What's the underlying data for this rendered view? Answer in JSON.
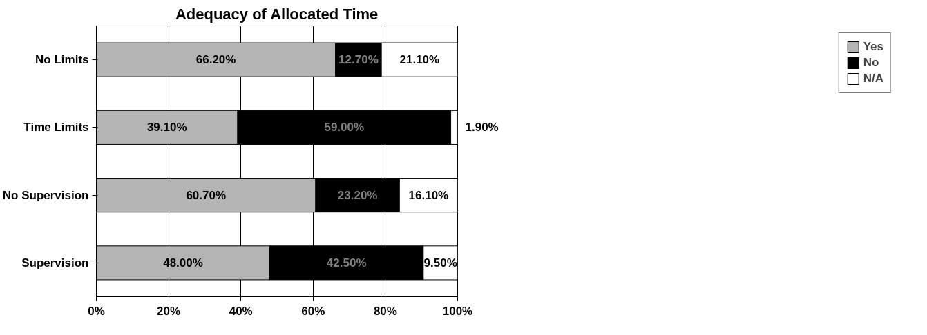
{
  "chart_data": {
    "type": "bar",
    "title": "Adequacy of Allocated Time",
    "orientation": "horizontal",
    "stacked": true,
    "categories": [
      "No Limits",
      "Time Limits",
      "No Supervision",
      "Supervision"
    ],
    "series": [
      {
        "name": "Yes",
        "color": "#b4b4b4",
        "values": [
          66.2,
          39.1,
          60.7,
          48.0
        ],
        "value_labels": [
          "66.20%",
          "39.10%",
          "60.70%",
          "48.00%"
        ]
      },
      {
        "name": "No",
        "color": "#000000",
        "values": [
          12.7,
          59.0,
          23.2,
          42.5
        ],
        "value_labels": [
          "12.70%",
          "59.00%",
          "23.20%",
          "42.50%"
        ]
      },
      {
        "name": "N/A",
        "color": "#ffffff",
        "values": [
          21.1,
          1.9,
          16.1,
          9.5
        ],
        "value_labels": [
          "21.10%",
          "1.90%",
          "16.10%",
          "9.50%"
        ]
      }
    ],
    "xlim": [
      0,
      100
    ],
    "xticks": [
      {
        "value": 0,
        "label": "0%"
      },
      {
        "value": 20,
        "label": "20%"
      },
      {
        "value": 40,
        "label": "40%"
      },
      {
        "value": 60,
        "label": "60%"
      },
      {
        "value": 80,
        "label": "80%"
      },
      {
        "value": 100,
        "label": "100%"
      }
    ],
    "grid": "x",
    "legend": "right"
  }
}
